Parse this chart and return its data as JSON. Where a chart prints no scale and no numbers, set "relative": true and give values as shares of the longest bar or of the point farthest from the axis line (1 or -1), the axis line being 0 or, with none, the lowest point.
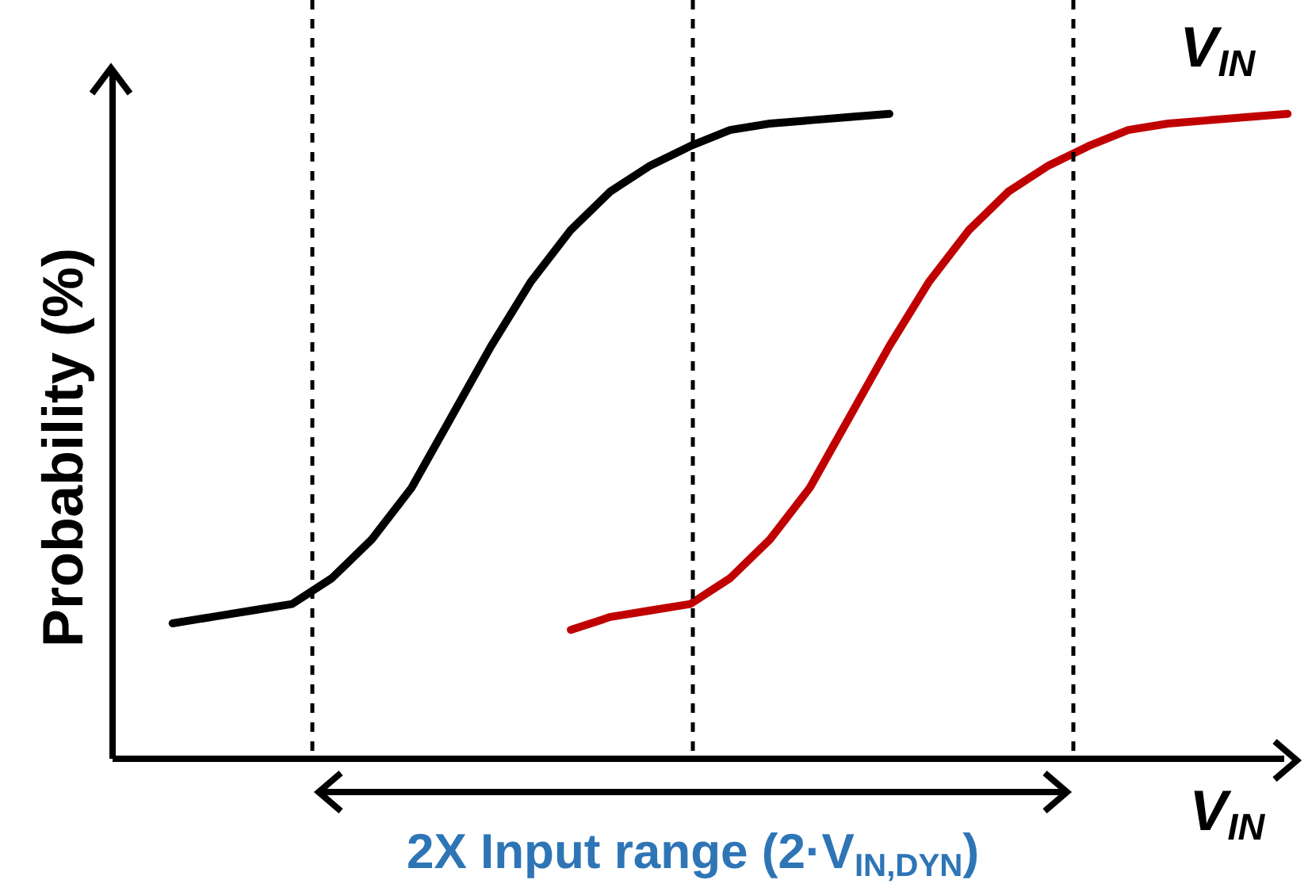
{
  "chart_data": {
    "type": "line",
    "relative": true,
    "xlabel": "V$_{IN}$",
    "ylabel": "Probability (%)",
    "categories": [
      null,
      null,
      null,
      null,
      null,
      null,
      null,
      null,
      null,
      null,
      null,
      null,
      null,
      null,
      null,
      null,
      null,
      null,
      null,
      null,
      null,
      null,
      null,
      null,
      null,
      null,
      null,
      null,
      null
    ],
    "annotations": [
      "V$_{IN}$",
      "2X Input range (2·V$_{IN,DYN}$)"
    ],
    "series": [
      {
        "color": "#000000",
        "values": [
          0.21,
          0.22,
          0.23,
          0.24,
          0.28,
          0.34,
          0.42,
          0.53,
          0.64,
          0.74,
          0.82,
          0.88,
          0.92,
          0.95,
          0.975,
          0.985,
          0.99,
          0.995,
          1,
          null,
          null,
          null,
          null,
          null,
          null,
          null,
          null,
          null,
          null
        ]
      },
      {
        "color": "#c00000",
        "values": [
          null,
          null,
          null,
          null,
          null,
          null,
          null,
          null,
          null,
          null,
          0.2,
          0.22,
          0.23,
          0.24,
          0.28,
          0.34,
          0.42,
          0.53,
          0.64,
          0.74,
          0.82,
          0.88,
          0.92,
          0.95,
          0.975,
          0.985,
          0.99,
          0.995,
          1
        ]
      }
    ]
  }
}
